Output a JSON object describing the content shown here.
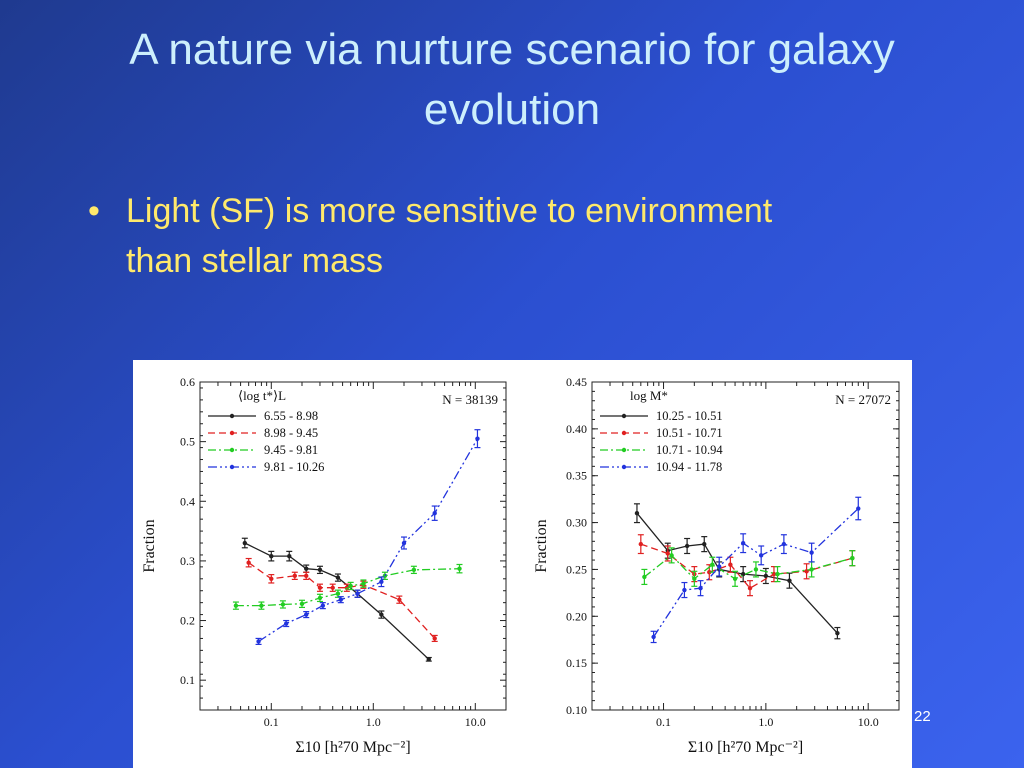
{
  "slide": {
    "title": "A nature via nurture scenario for galaxy evolution",
    "bullet_marker": "•",
    "bullet": "Light (SF) is more sensitive to environment than stellar mass",
    "page_number": "22"
  },
  "colors": {
    "series": [
      "#222222",
      "#e02020",
      "#22cc22",
      "#2233dd"
    ]
  },
  "chart_data": [
    {
      "type": "line",
      "xscale": "log",
      "xlim": [
        0.02,
        20
      ],
      "ylim": [
        0.05,
        0.6
      ],
      "yticks": [
        0.1,
        0.2,
        0.3,
        0.4,
        0.5,
        0.6
      ],
      "ytick_labels": [
        "0.1",
        "0.2",
        "0.3",
        "0.4",
        "0.5",
        "0.6"
      ],
      "xticks": [
        0.1,
        1,
        10
      ],
      "xtick_labels": [
        "0.1",
        "1.0",
        "10.0"
      ],
      "xlabel": "Σ10 [h²70 Mpc⁻²]",
      "ylabel": "Fraction",
      "legend_title": "⟨log  t*⟩L",
      "annotation": "N = 38139",
      "legend_position": "top-left",
      "series": [
        {
          "name": "6.55 - 8.98",
          "points": [
            [
              0.055,
              0.33
            ],
            [
              0.1,
              0.308
            ],
            [
              0.15,
              0.308
            ],
            [
              0.22,
              0.287
            ],
            [
              0.3,
              0.285
            ],
            [
              0.45,
              0.272
            ],
            [
              0.7,
              0.245
            ],
            [
              1.2,
              0.21
            ],
            [
              3.5,
              0.135
            ]
          ],
          "errors": [
            0.008,
            0.008,
            0.008,
            0.006,
            0.006,
            0.006,
            0.006,
            0.006,
            0.003
          ]
        },
        {
          "name": "8.98 - 9.45",
          "points": [
            [
              0.06,
              0.297
            ],
            [
              0.1,
              0.27
            ],
            [
              0.17,
              0.275
            ],
            [
              0.22,
              0.275
            ],
            [
              0.3,
              0.255
            ],
            [
              0.4,
              0.255
            ],
            [
              0.55,
              0.255
            ],
            [
              0.8,
              0.26
            ],
            [
              1.8,
              0.235
            ],
            [
              4,
              0.17
            ]
          ],
          "errors": [
            0.007,
            0.007,
            0.006,
            0.006,
            0.006,
            0.006,
            0.006,
            0.006,
            0.006,
            0.005
          ]
        },
        {
          "name": "9.45 - 9.81",
          "points": [
            [
              0.045,
              0.225
            ],
            [
              0.08,
              0.225
            ],
            [
              0.13,
              0.227
            ],
            [
              0.2,
              0.228
            ],
            [
              0.3,
              0.238
            ],
            [
              0.45,
              0.245
            ],
            [
              0.6,
              0.258
            ],
            [
              0.8,
              0.262
            ],
            [
              1.3,
              0.275
            ],
            [
              2.5,
              0.285
            ],
            [
              7,
              0.287
            ]
          ],
          "errors": [
            0.006,
            0.006,
            0.006,
            0.006,
            0.006,
            0.006,
            0.006,
            0.006,
            0.006,
            0.006,
            0.007
          ]
        },
        {
          "name": "9.81 - 10.26",
          "points": [
            [
              0.075,
              0.165
            ],
            [
              0.14,
              0.195
            ],
            [
              0.22,
              0.21
            ],
            [
              0.32,
              0.225
            ],
            [
              0.48,
              0.235
            ],
            [
              0.7,
              0.245
            ],
            [
              1.2,
              0.265
            ],
            [
              2,
              0.33
            ],
            [
              4,
              0.38
            ],
            [
              10.5,
              0.505
            ]
          ],
          "errors": [
            0.005,
            0.005,
            0.005,
            0.005,
            0.005,
            0.006,
            0.008,
            0.01,
            0.012,
            0.015
          ]
        }
      ]
    },
    {
      "type": "line",
      "xscale": "log",
      "xlim": [
        0.02,
        20
      ],
      "ylim": [
        0.1,
        0.45
      ],
      "yticks": [
        0.1,
        0.15,
        0.2,
        0.25,
        0.3,
        0.35,
        0.4,
        0.45
      ],
      "ytick_labels": [
        "0.10",
        "0.15",
        "0.20",
        "0.25",
        "0.30",
        "0.35",
        "0.40",
        "0.45"
      ],
      "xticks": [
        0.1,
        1,
        10
      ],
      "xtick_labels": [
        "0.1",
        "1.0",
        "10.0"
      ],
      "xlabel": "Σ10 [h²70 Mpc⁻²]",
      "ylabel": "Fraction",
      "legend_title": "log  M*",
      "annotation": "N = 27072",
      "legend_position": "top-left",
      "series": [
        {
          "name": "10.25 - 10.51",
          "points": [
            [
              0.055,
              0.31
            ],
            [
              0.11,
              0.27
            ],
            [
              0.17,
              0.275
            ],
            [
              0.25,
              0.277
            ],
            [
              0.35,
              0.25
            ],
            [
              0.6,
              0.245
            ],
            [
              1.0,
              0.243
            ],
            [
              1.7,
              0.238
            ],
            [
              5,
              0.182
            ]
          ],
          "errors": [
            0.01,
            0.008,
            0.008,
            0.008,
            0.008,
            0.008,
            0.008,
            0.008,
            0.006
          ]
        },
        {
          "name": "10.51 - 10.71",
          "points": [
            [
              0.06,
              0.277
            ],
            [
              0.11,
              0.267
            ],
            [
              0.2,
              0.245
            ],
            [
              0.28,
              0.247
            ],
            [
              0.45,
              0.255
            ],
            [
              0.7,
              0.23
            ],
            [
              1.2,
              0.245
            ],
            [
              2.5,
              0.248
            ],
            [
              7,
              0.262
            ]
          ],
          "errors": [
            0.01,
            0.008,
            0.008,
            0.008,
            0.008,
            0.008,
            0.008,
            0.008,
            0.008
          ]
        },
        {
          "name": "10.71 - 10.94",
          "points": [
            [
              0.065,
              0.242
            ],
            [
              0.12,
              0.265
            ],
            [
              0.2,
              0.24
            ],
            [
              0.3,
              0.255
            ],
            [
              0.5,
              0.24
            ],
            [
              0.8,
              0.25
            ],
            [
              1.3,
              0.245
            ],
            [
              2.8,
              0.25
            ],
            [
              7,
              0.262
            ]
          ],
          "errors": [
            0.008,
            0.008,
            0.008,
            0.008,
            0.008,
            0.008,
            0.008,
            0.008,
            0.008
          ]
        },
        {
          "name": "10.94 - 11.78",
          "points": [
            [
              0.08,
              0.178
            ],
            [
              0.16,
              0.228
            ],
            [
              0.23,
              0.23
            ],
            [
              0.35,
              0.253
            ],
            [
              0.6,
              0.278
            ],
            [
              0.9,
              0.265
            ],
            [
              1.5,
              0.277
            ],
            [
              2.8,
              0.268
            ],
            [
              8,
              0.315
            ]
          ],
          "errors": [
            0.006,
            0.008,
            0.008,
            0.01,
            0.01,
            0.01,
            0.01,
            0.01,
            0.012
          ]
        }
      ]
    }
  ]
}
